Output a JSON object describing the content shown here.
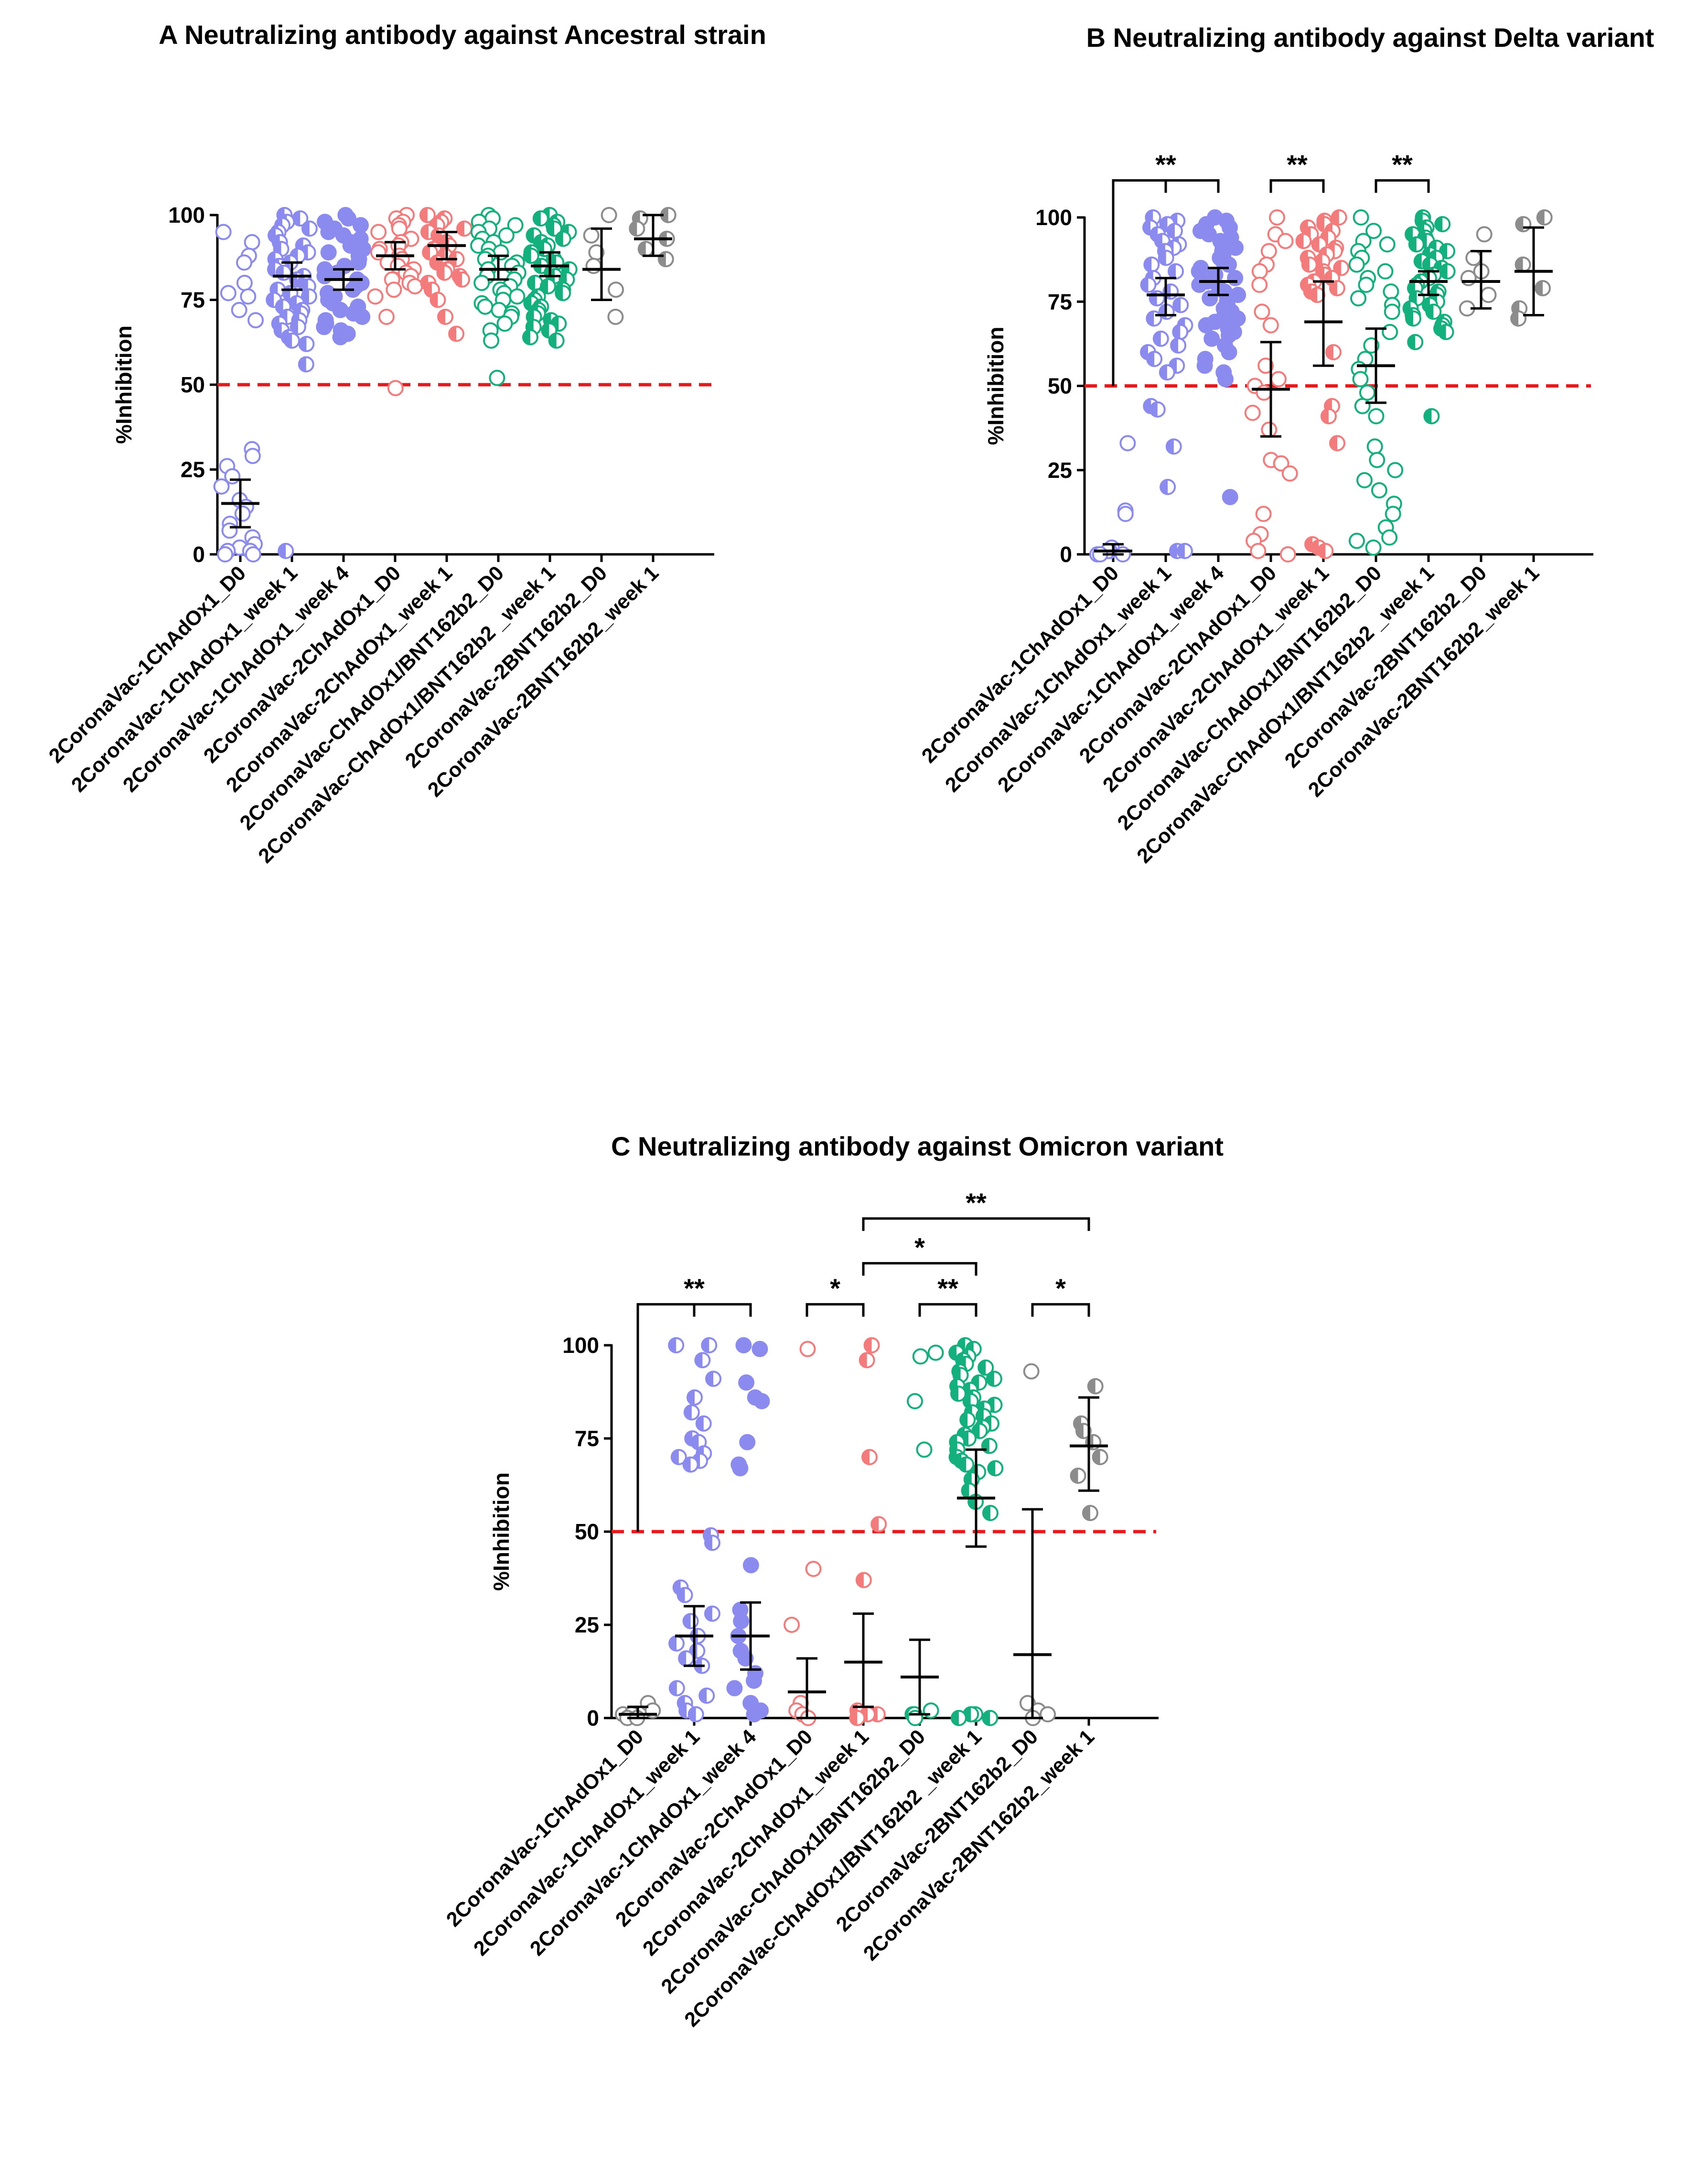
{
  "figure": {
    "colors": {
      "blue": "#8b8bef",
      "red": "#f47b7b",
      "green": "#13b07d",
      "gray": "#8c8c8c",
      "threshold": "#e8191c",
      "axis": "#000000"
    }
  },
  "chart_data": [
    {
      "panel": "A",
      "type": "scatter",
      "title": "A Neutralizing antibody against Ancestral strain",
      "ylabel": "%Inhibition",
      "ylim": [
        0,
        100
      ],
      "yticks": [
        "0",
        "25",
        "50",
        "75",
        "100"
      ],
      "threshold": 50,
      "categories": [
        "2CoronaVac-1ChAdOx1_D0",
        "2CoronaVac-1ChAdOx1_week 1",
        "2CoronaVac-1ChAdOx1_week 4",
        "2CoronaVac-2ChAdOx1_D0",
        "2CoronaVac-2ChAdOx1_week 1",
        "2CoronaVac-ChAdOx1/BNT162b2_D0",
        "2CoronaVac-ChAdOx1/BNT162b2 _week 1",
        "2CoronaVac-2BNT162b2_D0",
        "2CoronaVac-2BNT162b2_week 1"
      ],
      "groups": [
        {
          "color": "blue",
          "fill": "open",
          "mean": 15,
          "ci": [
            8,
            22
          ],
          "points": [
            95,
            92,
            88,
            86,
            80,
            77,
            76,
            72,
            69,
            31,
            29,
            26,
            23,
            20,
            16,
            14,
            12,
            9,
            7,
            5,
            3,
            2,
            1,
            1,
            0,
            0
          ]
        },
        {
          "color": "blue",
          "fill": "half",
          "mean": 82,
          "ci": [
            78,
            86
          ],
          "points": [
            100,
            99,
            98,
            97,
            96,
            95,
            94,
            92,
            91,
            90,
            89,
            88,
            87,
            86,
            85,
            84,
            83,
            82,
            81,
            80,
            79,
            78,
            77,
            76,
            75,
            74,
            73,
            72,
            71,
            70,
            69,
            68,
            67,
            66,
            64,
            63,
            62,
            56,
            1
          ]
        },
        {
          "color": "blue",
          "fill": "solid",
          "mean": 81,
          "ci": [
            78,
            84
          ],
          "points": [
            100,
            99,
            98,
            97,
            96,
            95,
            94,
            93,
            92,
            91,
            90,
            89,
            88,
            87,
            86,
            85,
            84,
            83,
            82,
            81,
            80,
            79,
            78,
            77,
            76,
            75,
            74,
            73,
            72,
            71,
            70,
            69,
            68,
            67,
            66,
            65,
            64
          ]
        },
        {
          "color": "red",
          "fill": "open",
          "mean": 88,
          "ci": [
            84,
            92
          ],
          "points": [
            100,
            99,
            98,
            97,
            96,
            95,
            93,
            92,
            91,
            90,
            89,
            88,
            87,
            86,
            85,
            84,
            83,
            82,
            81,
            80,
            79,
            78,
            76,
            70,
            49
          ]
        },
        {
          "color": "red",
          "fill": "half",
          "mean": 91,
          "ci": [
            87,
            95
          ],
          "points": [
            100,
            99,
            98,
            97,
            96,
            95,
            94,
            93,
            92,
            91,
            90,
            89,
            88,
            87,
            86,
            85,
            84,
            83,
            82,
            81,
            80,
            78,
            75,
            70,
            65
          ]
        },
        {
          "color": "green",
          "fill": "open",
          "mean": 84,
          "ci": [
            81,
            88
          ],
          "points": [
            100,
            99,
            98,
            97,
            96,
            95,
            94,
            93,
            92,
            91,
            90,
            89,
            88,
            87,
            86,
            85,
            84,
            83,
            82,
            81,
            80,
            79,
            78,
            77,
            76,
            75,
            74,
            73,
            72,
            71,
            70,
            68,
            66,
            63,
            52
          ]
        },
        {
          "color": "green",
          "fill": "half",
          "mean": 85,
          "ci": [
            82,
            89
          ],
          "points": [
            100,
            99,
            98,
            97,
            96,
            95,
            94,
            93,
            92,
            91,
            90,
            89,
            88,
            87,
            86,
            85,
            84,
            83,
            82,
            81,
            80,
            79,
            78,
            77,
            76,
            75,
            74,
            73,
            72,
            71,
            70,
            69,
            68,
            67,
            66,
            64,
            63
          ]
        },
        {
          "color": "gray",
          "fill": "open",
          "mean": 84,
          "ci": [
            75,
            96
          ],
          "points": [
            100,
            94,
            89,
            85,
            78,
            70
          ]
        },
        {
          "color": "gray",
          "fill": "half",
          "mean": 93,
          "ci": [
            88,
            100
          ],
          "points": [
            100,
            99,
            96,
            93,
            90,
            87
          ]
        }
      ],
      "brackets": []
    },
    {
      "panel": "B",
      "type": "scatter",
      "title": "B Neutralizing antibody against Delta variant",
      "ylabel": "%Inhibition",
      "ylim": [
        0,
        100
      ],
      "yticks": [
        "0",
        "25",
        "50",
        "75",
        "100"
      ],
      "threshold": 50,
      "categories": [
        "2CoronaVac-1ChAdOx1_D0",
        "2CoronaVac-1ChAdOx1_week 1",
        "2CoronaVac-1ChAdOx1_week 4",
        "2CoronaVac-2ChAdOx1_D0",
        "2CoronaVac-2ChAdOx1_week 1",
        "2CoronaVac-ChAdOx1/BNT162b2_D0",
        "2CoronaVac-ChAdOx1/BNT162b2 _week 1",
        "2CoronaVac-2BNT162b2_D0",
        "2CoronaVac-2BNT162b2_week 1"
      ],
      "groups": [
        {
          "color": "blue",
          "fill": "open",
          "mean": 1,
          "ci": [
            0,
            3
          ],
          "points": [
            33,
            13,
            12,
            2,
            1,
            1,
            0,
            0,
            0
          ]
        },
        {
          "color": "blue",
          "fill": "half",
          "mean": 77,
          "ci": [
            71,
            82
          ],
          "points": [
            100,
            99,
            98,
            97,
            96,
            95,
            93,
            92,
            91,
            90,
            88,
            86,
            84,
            82,
            80,
            78,
            76,
            74,
            72,
            70,
            68,
            66,
            64,
            62,
            60,
            58,
            56,
            54,
            44,
            43,
            32,
            20,
            1,
            1
          ]
        },
        {
          "color": "blue",
          "fill": "solid",
          "mean": 81,
          "ci": [
            77,
            85
          ],
          "points": [
            100,
            99,
            98,
            97,
            96,
            95,
            94,
            93,
            92,
            91,
            90,
            89,
            88,
            87,
            86,
            85,
            84,
            83,
            82,
            81,
            80,
            79,
            78,
            77,
            76,
            75,
            74,
            73,
            72,
            71,
            70,
            69,
            68,
            67,
            66,
            65,
            64,
            62,
            60,
            58,
            56,
            54,
            52,
            17
          ]
        },
        {
          "color": "red",
          "fill": "open",
          "mean": 49,
          "ci": [
            35,
            63
          ],
          "points": [
            100,
            95,
            93,
            90,
            86,
            84,
            80,
            72,
            68,
            56,
            52,
            50,
            48,
            42,
            37,
            28,
            27,
            24,
            12,
            6,
            4,
            1,
            0
          ]
        },
        {
          "color": "red",
          "fill": "half",
          "mean": 69,
          "ci": [
            56,
            81
          ],
          "points": [
            100,
            99,
            98,
            97,
            96,
            95,
            94,
            93,
            92,
            91,
            90,
            89,
            88,
            87,
            86,
            85,
            84,
            83,
            82,
            81,
            80,
            79,
            78,
            77,
            60,
            44,
            41,
            33,
            3,
            2,
            1
          ]
        },
        {
          "color": "green",
          "fill": "open",
          "mean": 56,
          "ci": [
            45,
            67
          ],
          "points": [
            100,
            96,
            93,
            92,
            90,
            88,
            86,
            84,
            82,
            80,
            78,
            76,
            74,
            72,
            66,
            62,
            58,
            55,
            52,
            48,
            44,
            41,
            32,
            28,
            25,
            22,
            19,
            15,
            12,
            8,
            5,
            4,
            2
          ]
        },
        {
          "color": "green",
          "fill": "half",
          "mean": 81,
          "ci": [
            77,
            84
          ],
          "points": [
            100,
            99,
            98,
            97,
            96,
            95,
            94,
            93,
            92,
            91,
            90,
            89,
            88,
            87,
            86,
            85,
            84,
            83,
            82,
            81,
            80,
            79,
            78,
            77,
            76,
            75,
            74,
            73,
            72,
            71,
            70,
            69,
            68,
            67,
            66,
            63,
            41
          ]
        },
        {
          "color": "gray",
          "fill": "open",
          "mean": 81,
          "ci": [
            73,
            90
          ],
          "points": [
            95,
            88,
            84,
            82,
            77,
            73
          ]
        },
        {
          "color": "gray",
          "fill": "half",
          "mean": 84,
          "ci": [
            71,
            97
          ],
          "points": [
            100,
            98,
            86,
            79,
            73,
            70
          ]
        }
      ],
      "brackets": [
        {
          "from": 0,
          "to": 2,
          "mid": 1,
          "level": 111,
          "label": "**"
        },
        {
          "from": 3,
          "to": 4,
          "label": "**",
          "level": 111
        },
        {
          "from": 5,
          "to": 6,
          "label": "**",
          "level": 111
        }
      ]
    },
    {
      "panel": "C",
      "type": "scatter",
      "title": "C Neutralizing antibody against Omicron variant",
      "ylabel": "%Inhibition",
      "ylim": [
        0,
        100
      ],
      "yticks": [
        "0",
        "25",
        "50",
        "75",
        "100"
      ],
      "threshold": 50,
      "categories": [
        "2CoronaVac-1ChAdOx1_D0",
        "2CoronaVac-1ChAdOx1_week 1",
        "2CoronaVac-1ChAdOx1_week 4",
        "2CoronaVac-2ChAdOx1_D0",
        "2CoronaVac-2ChAdOx1_week 1",
        "2CoronaVac-ChAdOx1/BNT162b2_D0",
        "2CoronaVac-ChAdOx1/BNT162b2 _week 1",
        "2CoronaVac-2BNT162b2_D0",
        "2CoronaVac-2BNT162b2_week 1"
      ],
      "groups": [
        {
          "color": "gray",
          "fill": "open",
          "mean": 1,
          "ci": [
            0,
            3
          ],
          "points": [
            4,
            2,
            1,
            1,
            0,
            0
          ]
        },
        {
          "color": "blue",
          "fill": "half",
          "mean": 22,
          "ci": [
            14,
            30
          ],
          "points": [
            100,
            100,
            96,
            91,
            86,
            82,
            79,
            75,
            74,
            71,
            70,
            69,
            68,
            49,
            47,
            35,
            33,
            28,
            26,
            22,
            20,
            18,
            16,
            14,
            8,
            6,
            4,
            2,
            1
          ]
        },
        {
          "color": "blue",
          "fill": "solid",
          "mean": 22,
          "ci": [
            13,
            31
          ],
          "points": [
            100,
            99,
            90,
            86,
            85,
            74,
            68,
            67,
            41,
            29,
            26,
            22,
            18,
            16,
            12,
            10,
            8,
            4,
            2,
            1
          ]
        },
        {
          "color": "red",
          "fill": "open",
          "mean": 7,
          "ci": [
            0,
            16
          ],
          "points": [
            99,
            40,
            25,
            4,
            2,
            1,
            0
          ]
        },
        {
          "color": "red",
          "fill": "half",
          "mean": 15,
          "ci": [
            3,
            28
          ],
          "points": [
            100,
            96,
            70,
            52,
            37,
            2,
            1,
            1,
            0
          ]
        },
        {
          "color": "green",
          "fill": "open",
          "mean": 11,
          "ci": [
            1,
            21
          ],
          "points": [
            98,
            97,
            85,
            72,
            2,
            1,
            1,
            0
          ]
        },
        {
          "color": "green",
          "fill": "half",
          "mean": 59,
          "ci": [
            46,
            72
          ],
          "points": [
            100,
            99,
            98,
            97,
            96,
            95,
            94,
            93,
            92,
            91,
            90,
            89,
            88,
            87,
            86,
            85,
            84,
            83,
            82,
            81,
            80,
            79,
            78,
            77,
            76,
            75,
            74,
            73,
            72,
            70,
            69,
            68,
            67,
            66,
            64,
            61,
            58,
            55,
            1,
            1,
            0,
            0
          ]
        },
        {
          "color": "gray",
          "fill": "open",
          "mean": 17,
          "ci": [
            0,
            56
          ],
          "points": [
            93,
            4,
            2,
            1,
            0
          ]
        },
        {
          "color": "gray",
          "fill": "half",
          "mean": 73,
          "ci": [
            61,
            86
          ],
          "points": [
            89,
            79,
            77,
            74,
            70,
            65,
            55
          ]
        }
      ],
      "brackets": [
        {
          "from": 0,
          "to": 2,
          "mid": 1,
          "level": 111,
          "label": "**"
        },
        {
          "from": 3,
          "to": 4,
          "label": "*",
          "level": 111
        },
        {
          "from": 5,
          "to": 6,
          "label": "**",
          "level": 111
        },
        {
          "from": 7,
          "to": 8,
          "label": "*",
          "level": 111
        },
        {
          "from": 4,
          "to": 6,
          "label": "*",
          "level": 122
        },
        {
          "from": 4,
          "to": 8,
          "label": "**",
          "level": 134
        }
      ]
    }
  ]
}
